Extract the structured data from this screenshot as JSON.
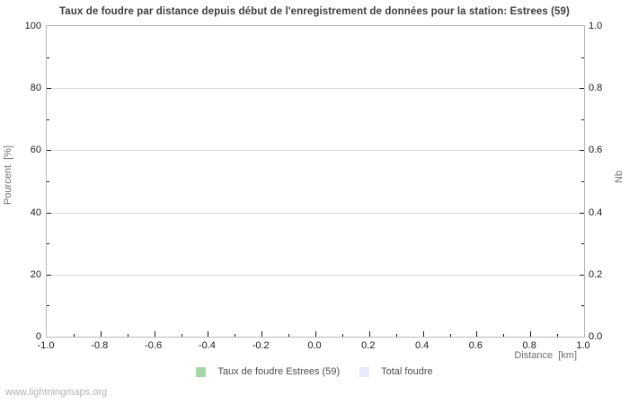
{
  "chart_data": {
    "type": "bar",
    "title": "Taux de foudre par distance depuis début de l'enregistrement de données pour la station: Estrees (59)",
    "xlabel": "Distance  [km]",
    "ylabel_left": "Pourcent  [%]",
    "ylabel_right": "Nb",
    "xlim": [
      -1.0,
      1.0
    ],
    "ylim_left": [
      0,
      100
    ],
    "ylim_right": [
      0.0,
      1.0
    ],
    "x_tick_labels": [
      "-1.0",
      "-0.8",
      "-0.6",
      "-0.4",
      "-0.2",
      "0.0",
      "0.2",
      "0.4",
      "0.6",
      "0.8",
      "1.0"
    ],
    "y_tick_labels_left": [
      "0",
      "20",
      "40",
      "60",
      "80",
      "100"
    ],
    "y_tick_labels_right": [
      "0.0",
      "0.2",
      "0.4",
      "0.6",
      "0.8",
      "1.0"
    ],
    "grid": "horizontal-major-only",
    "legend_position": "bottom-center",
    "series": [
      {
        "name": "Taux de foudre Estrees (59)",
        "color": "#a8d6a8",
        "values": []
      },
      {
        "name": "Total foudre",
        "color": "#e9e9f8",
        "values": []
      }
    ]
  },
  "watermark": "www.lightningmaps.org",
  "colors": {
    "plot_border": "#b9b9b9",
    "gridline": "#dadada",
    "tick": "#1a1a1a",
    "tick_label": "#1a1a1a",
    "axis_title": "#6e6e6e",
    "chart_title": "#3d3d3d",
    "legend_text": "#4d4d4d",
    "watermark": "#b2b2b2",
    "background": "#ffffff"
  }
}
